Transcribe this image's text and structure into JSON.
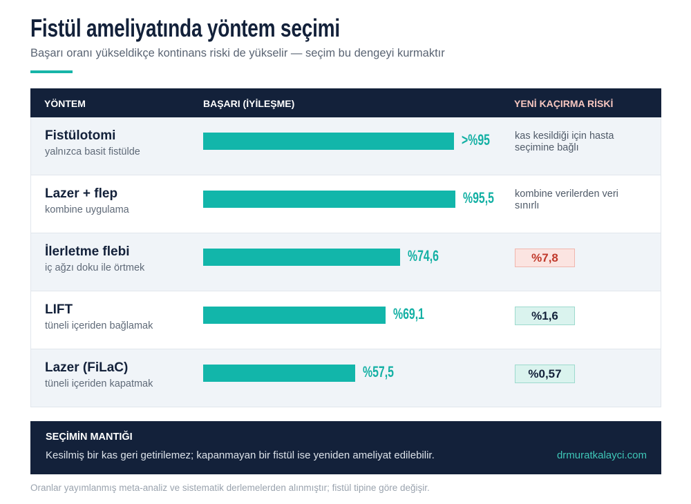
{
  "header": {
    "title": "Fistül ameliyatında yöntem seçimi",
    "subtitle": "Başarı oranı yükseldikçe kontinans riski de yükselir — seçim bu dengeyi kurmaktır"
  },
  "table": {
    "columns": {
      "method": "YÖNTEM",
      "success": "BAŞARI (İYİLEŞME)",
      "risk": "YENİ KAÇIRMA RİSKİ"
    },
    "rows": [
      {
        "name": "Fistülotomi",
        "desc": "yalnızca basit fistülde",
        "success_label": ">%95",
        "success_value": 95,
        "risk_text": "kas kesildiği için hasta seçimine bağlı",
        "risk_value": "",
        "risk_level": "none"
      },
      {
        "name": "Lazer + flep",
        "desc": "kombine uygulama",
        "success_label": "%95,5",
        "success_value": 95.5,
        "risk_text": "kombine verilerden veri sınırlı",
        "risk_value": "",
        "risk_level": "none"
      },
      {
        "name": "İlerletme flebi",
        "desc": "iç ağzı doku ile örtmek",
        "success_label": "%74,6",
        "success_value": 74.6,
        "risk_text": "",
        "risk_value": "%7,8",
        "risk_level": "high"
      },
      {
        "name": "LIFT",
        "desc": "tüneli içeriden bağlamak",
        "success_label": "%69,1",
        "success_value": 69.1,
        "risk_text": "",
        "risk_value": "%1,6",
        "risk_level": "low"
      },
      {
        "name": "Lazer (FiLaC)",
        "desc": "tüneli içeriden kapatmak",
        "success_label": "%57,5",
        "success_value": 57.5,
        "risk_text": "",
        "risk_value": "%0,57",
        "risk_level": "low"
      }
    ]
  },
  "logic": {
    "title": "SEÇİMİN MANTIĞI",
    "text": "Kesilmiş bir kas geri getirilemez; kapanmayan bir fistül ise yeniden ameliyat edilebilir.",
    "site": "drmuratkalayci.com"
  },
  "footnote": "Oranlar yayımlanmış meta-analiz ve sistematik derlemelerden alınmıştır; fistül tipine göre değişir.",
  "colors": {
    "navy": "#13213a",
    "teal": "#12b6aa",
    "risk_high": "#c0392b",
    "risk_header": "#f7c7c0"
  }
}
